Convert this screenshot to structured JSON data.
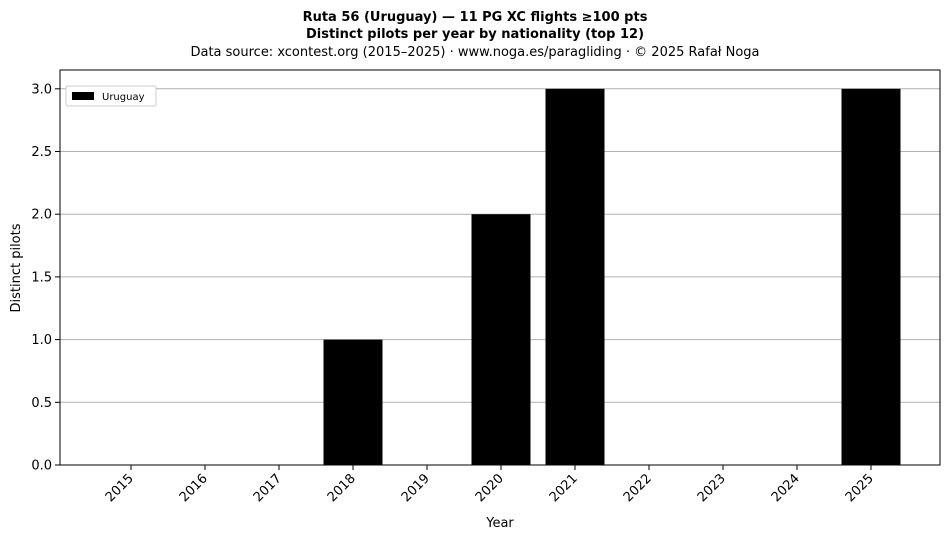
{
  "chart_data": {
    "type": "bar",
    "title_line1": "Ruta 56 (Uruguay)  —  11 PG XC flights ≥100 pts",
    "title_line2": "Distinct pilots per year by nationality (top 12)",
    "subtitle": "Data source: xcontest.org (2015–2025)  ·  www.noga.es/paragliding  ·  © 2025 Rafał Noga",
    "xlabel": "Year",
    "ylabel": "Distinct pilots",
    "categories": [
      "2015",
      "2016",
      "2017",
      "2018",
      "2019",
      "2020",
      "2021",
      "2022",
      "2023",
      "2024",
      "2025"
    ],
    "series": [
      {
        "name": "Uruguay",
        "values": [
          0,
          0,
          0,
          1,
          0,
          2,
          3,
          0,
          0,
          0,
          3
        ],
        "color": "#000000"
      }
    ],
    "ylim": [
      0,
      3.15
    ],
    "yticks": [
      "0.0",
      "0.5",
      "1.0",
      "1.5",
      "2.0",
      "2.5",
      "3.0"
    ],
    "ytick_values": [
      0,
      0.5,
      1.0,
      1.5,
      2.0,
      2.5,
      3.0
    ],
    "grid": "y",
    "legend": "top-left"
  }
}
